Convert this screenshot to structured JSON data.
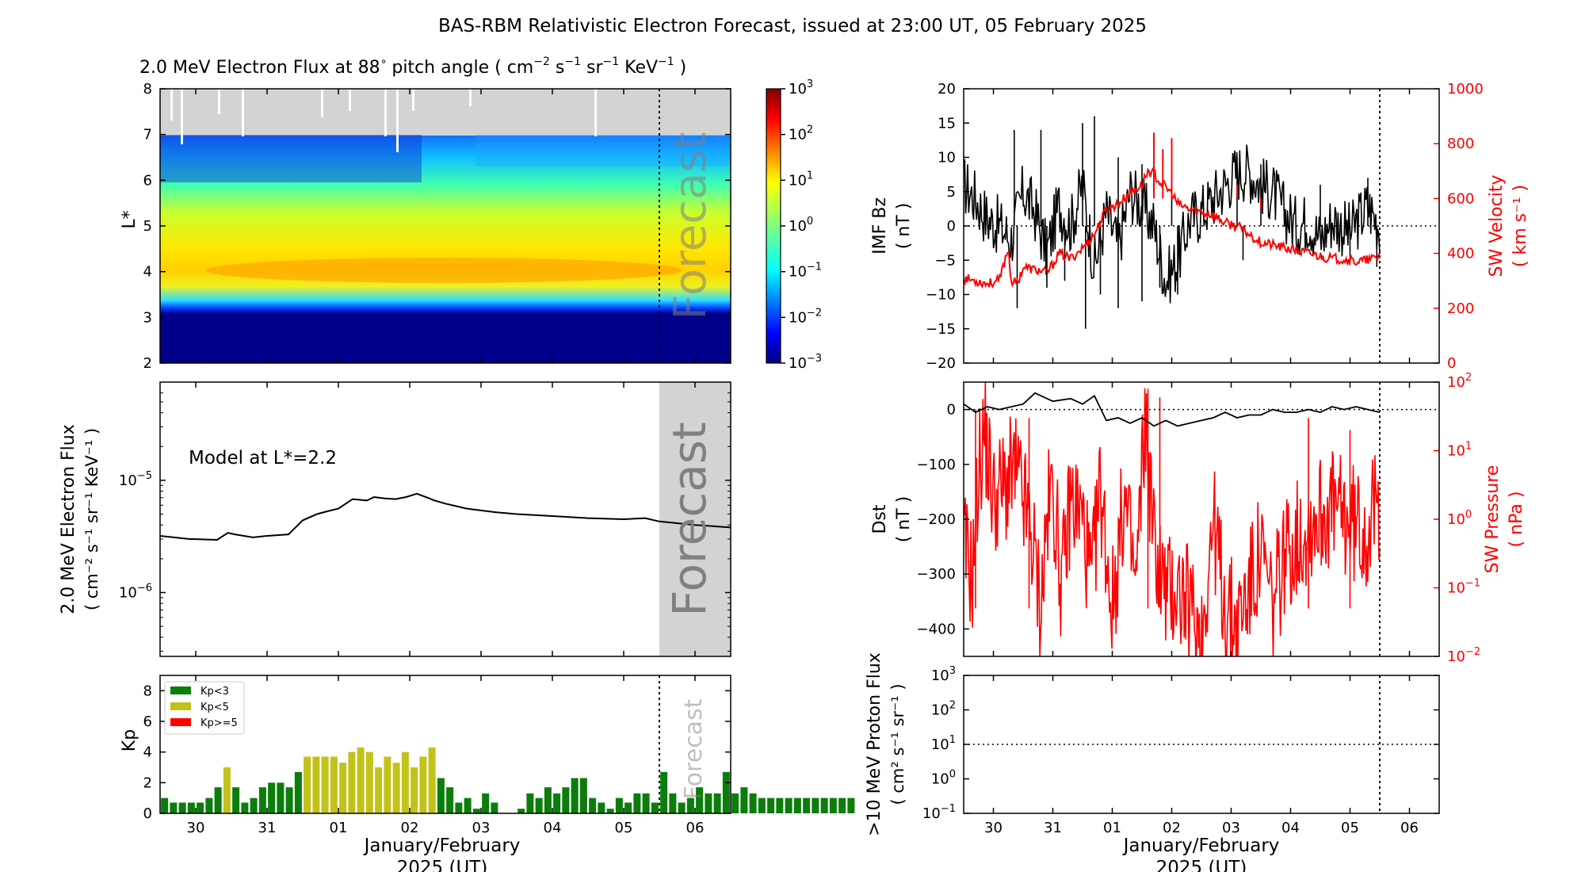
{
  "figure": {
    "title": "BAS-RBM Relativistic Electron Forecast, issued at 23:00 UT, 05 February 2025",
    "time_axis": {
      "range_days": [
        0,
        8.0
      ],
      "range_label": "29 Jan 12:00 UT to 06 Feb 12:00 UT",
      "forecast_start_day": 7.0,
      "tick_days": [
        0.5,
        1.5,
        2.5,
        3.5,
        4.5,
        5.5,
        6.5,
        7.5
      ],
      "tick_labels": [
        "30",
        "31",
        "01",
        "02",
        "03",
        "04",
        "05",
        "06"
      ],
      "xlabel_line1": "January/February",
      "xlabel_line2": "2025 (UT)"
    },
    "forecast_label": "Forecast"
  },
  "chart_data": [
    {
      "id": "flux-heatmap",
      "type": "heatmap",
      "title_prefix": "2.0 MeV Electron Flux at 88",
      "title_degree": "∘",
      "title_units": "pitch angle ( cm",
      "title_units_sup1": "−2",
      "title_units_mid1": " s",
      "title_units_sup2": "−1",
      "title_units_mid2": " sr",
      "title_units_sup3": "−1",
      "title_units_mid3": " KeV",
      "title_units_sup4": "−1",
      "title_units_end": " )",
      "ylabel": "L*",
      "ylim": [
        2,
        8
      ],
      "yticks": [
        2,
        3,
        4,
        5,
        6,
        7,
        8
      ],
      "colorbar": {
        "scale": "log",
        "range": [
          0.001,
          1000
        ],
        "colormap": "jet",
        "ticks": [
          {
            "base": "10",
            "exp": "3"
          },
          {
            "base": "10",
            "exp": "2"
          },
          {
            "base": "10",
            "exp": "1"
          },
          {
            "base": "10",
            "exp": "0"
          },
          {
            "base": "10",
            "exp": "−1"
          },
          {
            "base": "10",
            "exp": "−2"
          },
          {
            "base": "10",
            "exp": "−3"
          }
        ]
      },
      "no_data_above_L": 7.0,
      "bands": [
        {
          "L": [
            2.0,
            3.1
          ],
          "log10_flux": -3.0
        },
        {
          "L": [
            3.1,
            3.35
          ],
          "log10_flux": -1.5
        },
        {
          "L": [
            3.35,
            3.8
          ],
          "log10_flux": 0.6
        },
        {
          "L": [
            3.8,
            4.3
          ],
          "log10_flux": 1.2
        },
        {
          "L": [
            4.3,
            5.2
          ],
          "log10_flux": 0.6
        },
        {
          "L": [
            5.2,
            6.0
          ],
          "log10_flux": -0.3
        },
        {
          "L": [
            6.0,
            7.0
          ],
          "log10_flux": -1.0
        }
      ]
    },
    {
      "id": "model-flux",
      "type": "line",
      "annotation": "Model at L*=2.2",
      "ylabel_line1": "2.0 MeV Electron Flux",
      "ylabel_line2": "( cm⁻² s⁻¹ sr⁻¹ KeV⁻¹ )",
      "yscale": "log",
      "ylim": [
        2.7e-07,
        7.5e-05
      ],
      "yticks": [
        {
          "value": 1e-05,
          "base": "10",
          "exp": "−5"
        },
        {
          "value": 1e-06,
          "base": "10",
          "exp": "−6"
        }
      ],
      "x_days": [
        0,
        0.4,
        0.8,
        0.95,
        1.05,
        1.3,
        1.5,
        1.8,
        2.0,
        2.2,
        2.35,
        2.5,
        2.7,
        2.9,
        3.0,
        3.15,
        3.3,
        3.45,
        3.6,
        3.75,
        3.85,
        4.0,
        4.3,
        4.7,
        5.0,
        5.5,
        6.0,
        6.5,
        6.8,
        7.0,
        7.5,
        8.0
      ],
      "values": [
        3.2e-06,
        3e-06,
        2.95e-06,
        3.4e-06,
        3.3e-06,
        3.1e-06,
        3.2e-06,
        3.3e-06,
        4.4e-06,
        5e-06,
        5.3e-06,
        5.6e-06,
        6.8e-06,
        6.6e-06,
        7.1e-06,
        6.9e-06,
        6.8e-06,
        7.1e-06,
        7.6e-06,
        7e-06,
        6.6e-06,
        6.2e-06,
        5.6e-06,
        5.2e-06,
        5e-06,
        4.8e-06,
        4.6e-06,
        4.5e-06,
        4.6e-06,
        4.3e-06,
        4e-06,
        3.8e-06
      ]
    },
    {
      "id": "kp",
      "type": "bar",
      "ylabel": "Kp",
      "ylim": [
        0,
        9
      ],
      "yticks": [
        0,
        2,
        4,
        6,
        8
      ],
      "legend": [
        {
          "label": "Kp<3",
          "color": "#0b7d0b"
        },
        {
          "label": "Kp<5",
          "color": "#c2c21a"
        },
        {
          "label": "Kp>=5",
          "color": "#ff0000"
        }
      ],
      "bar_width_days": 0.1,
      "start_day": 0.0625,
      "step_days": 0.125,
      "values": [
        1.0,
        0.7,
        0.7,
        0.7,
        0.7,
        1.0,
        1.7,
        3.0,
        1.7,
        0.7,
        1.0,
        1.7,
        2.0,
        2.0,
        1.7,
        2.7,
        3.7,
        3.7,
        3.7,
        3.7,
        3.3,
        4.0,
        4.3,
        4.0,
        3.0,
        3.7,
        3.3,
        4.0,
        3.0,
        3.7,
        4.3,
        2.3,
        1.7,
        0.7,
        1.0,
        0.3,
        1.3,
        0.7,
        0,
        0,
        0.3,
        1.3,
        1.0,
        1.7,
        1.3,
        1.7,
        2.3,
        2.3,
        1.0,
        0.7,
        0.3,
        1.0,
        0.7,
        1.3,
        1.3,
        0.7,
        2.7,
        1.3,
        0.7,
        1.0,
        1.7,
        1.3,
        1.3,
        2.7,
        1.3,
        1.7,
        1.3,
        1.0,
        1.0,
        1.0,
        1.0,
        1.0,
        1.0,
        1.0,
        1.0,
        1.0,
        1.0,
        1.0
      ]
    },
    {
      "id": "imf-bz-sw-velocity",
      "type": "line",
      "left_axis": {
        "label_line1": "IMF Bz",
        "label_line2": "( nT )",
        "ylim": [
          -20,
          20
        ],
        "yticks": [
          -20,
          -15,
          -10,
          -5,
          0,
          5,
          10,
          15,
          20
        ],
        "series_name": "IMF Bz",
        "color": "#000000",
        "x_days": [
          0,
          0.2,
          0.4,
          0.6,
          0.8,
          1.0,
          1.2,
          1.4,
          1.6,
          1.8,
          2.0,
          2.2,
          2.4,
          2.6,
          2.8,
          3.0,
          3.2,
          3.4,
          3.6,
          3.8,
          4.0,
          4.2,
          4.4,
          4.6,
          4.8,
          5.0,
          5.2,
          5.4,
          5.6,
          5.8,
          6.0,
          6.2,
          6.5,
          6.8,
          7.0
        ],
        "values": [
          6,
          4,
          1,
          0,
          -2,
          5,
          2,
          -4,
          3,
          0,
          6,
          -6,
          2,
          -3,
          5,
          3,
          0,
          -8,
          -5,
          1,
          2,
          4,
          6,
          8,
          8,
          6,
          5,
          2,
          0,
          1,
          -2,
          1,
          -1,
          3,
          0
        ],
        "min_spikes": [
          [
            0.9,
            -12
          ],
          [
            1.4,
            -9
          ],
          [
            1.7,
            -8
          ],
          [
            2.05,
            -15
          ],
          [
            2.3,
            -10
          ],
          [
            2.6,
            -12
          ],
          [
            3.0,
            -11
          ],
          [
            3.3,
            -9
          ],
          [
            3.6,
            -10
          ],
          [
            4.7,
            -5
          ],
          [
            6.5,
            -5
          ],
          [
            6.95,
            -6
          ]
        ],
        "max_spikes": [
          [
            0.85,
            14
          ],
          [
            1.3,
            14
          ],
          [
            2.0,
            15
          ],
          [
            2.2,
            16
          ],
          [
            2.6,
            10
          ],
          [
            3.0,
            9
          ],
          [
            3.5,
            8
          ],
          [
            4.6,
            10
          ],
          [
            5.0,
            9
          ],
          [
            6.0,
            6
          ],
          [
            6.8,
            7
          ]
        ],
        "zero_line": true
      },
      "right_axis": {
        "label_line1": "SW Velocity",
        "label_line2": "( km s⁻¹ )",
        "ylim": [
          0,
          1000
        ],
        "yticks": [
          0,
          200,
          400,
          600,
          800,
          1000
        ],
        "series_name": "SW Velocity",
        "color": "#ff0000",
        "x_days": [
          0,
          0.2,
          0.4,
          0.6,
          0.75,
          0.8,
          0.9,
          1.0,
          1.2,
          1.4,
          1.5,
          1.6,
          1.8,
          2.0,
          2.2,
          2.4,
          2.6,
          2.8,
          3.0,
          3.1,
          3.2,
          3.3,
          3.4,
          3.5,
          3.6,
          3.8,
          4.0,
          4.2,
          4.4,
          4.6,
          4.8,
          5.0,
          5.2,
          5.4,
          5.6,
          5.8,
          6.0,
          6.2,
          6.4,
          6.6,
          6.8,
          7.0
        ],
        "values": [
          310,
          300,
          290,
          300,
          420,
          300,
          290,
          350,
          340,
          330,
          360,
          400,
          380,
          420,
          470,
          560,
          580,
          620,
          650,
          700,
          690,
          660,
          640,
          620,
          580,
          560,
          550,
          540,
          510,
          500,
          470,
          440,
          430,
          420,
          410,
          400,
          390,
          380,
          380,
          370,
          375,
          390
        ],
        "max_spikes": [
          [
            3.2,
            840
          ],
          [
            3.35,
            780
          ],
          [
            3.5,
            820
          ],
          [
            4.6,
            650
          ],
          [
            5.0,
            560
          ]
        ]
      }
    },
    {
      "id": "dst-sw-pressure",
      "type": "line",
      "left_axis": {
        "label_line1": "Dst",
        "label_line2": "( nT )",
        "ylim": [
          -450,
          50
        ],
        "yticks": [
          0,
          -100,
          -200,
          -300,
          -400
        ],
        "ytick_labels": [
          "0",
          "−100",
          "−200",
          "−300",
          "−400"
        ],
        "series_name": "Dst",
        "color": "#000000",
        "x_days": [
          0,
          0.2,
          0.4,
          0.6,
          0.8,
          1.0,
          1.2,
          1.5,
          1.8,
          2.0,
          2.2,
          2.4,
          2.6,
          2.8,
          3.0,
          3.2,
          3.4,
          3.6,
          3.8,
          4.0,
          4.2,
          4.4,
          4.6,
          4.8,
          5.0,
          5.2,
          5.4,
          5.6,
          5.8,
          6.0,
          6.2,
          6.4,
          6.6,
          6.8,
          7.0
        ],
        "values": [
          10,
          -5,
          5,
          0,
          5,
          10,
          30,
          15,
          20,
          10,
          25,
          -20,
          -15,
          -25,
          -15,
          -30,
          -20,
          -30,
          -25,
          -20,
          -15,
          -5,
          -15,
          -10,
          -10,
          0,
          -5,
          -5,
          0,
          -5,
          5,
          0,
          5,
          0,
          -5
        ]
      },
      "right_axis": {
        "label_line1": "SW Pressure",
        "label_line2": "( nPa )",
        "yscale": "log",
        "ylim": [
          0.01,
          100
        ],
        "yticks": [
          {
            "value": 100,
            "base": "10",
            "exp": "2"
          },
          {
            "value": 10,
            "base": "10",
            "exp": "1"
          },
          {
            "value": 1,
            "base": "10",
            "exp": "0"
          },
          {
            "value": 0.1,
            "base": "10",
            "exp": "−1"
          },
          {
            "value": 0.01,
            "base": "10",
            "exp": "−2"
          }
        ],
        "series_name": "SW Pressure",
        "color": "#ff0000",
        "x_days": [
          0,
          0.15,
          0.25,
          0.35,
          0.5,
          0.7,
          0.85,
          1.0,
          1.15,
          1.3,
          1.4,
          1.5,
          1.65,
          1.8,
          2.0,
          2.15,
          2.3,
          2.5,
          2.7,
          2.9,
          3.05,
          3.2,
          3.4,
          3.6,
          3.8,
          4.0,
          4.2,
          4.4,
          4.6,
          4.8,
          5.0,
          5.2,
          5.4,
          5.6,
          5.8,
          6.0,
          6.2,
          6.4,
          6.6,
          6.8,
          7.0
        ],
        "values": [
          0.4,
          0.15,
          5,
          20,
          2,
          3,
          5,
          2,
          0.5,
          0.05,
          1,
          3,
          0.1,
          2,
          1,
          0.1,
          3,
          0.05,
          2,
          0.1,
          30,
          0.5,
          0.08,
          0.1,
          0.05,
          0.02,
          1,
          0.05,
          0.03,
          0.1,
          0.3,
          0.05,
          0.3,
          0.5,
          0.8,
          1.2,
          1.5,
          1.0,
          0.8,
          0.7,
          1.8
        ],
        "max_spikes": [
          [
            0.2,
            40
          ],
          [
            1.1,
            30
          ],
          [
            3.1,
            80
          ],
          [
            3.3,
            60
          ],
          [
            5.8,
            30
          ],
          [
            6.5,
            20
          ]
        ]
      }
    },
    {
      "id": "proton-flux",
      "type": "line",
      "ylabel_line1": ">10 MeV Proton Flux",
      "ylabel_line2": "( cm² s⁻¹ sr⁻¹ )",
      "yscale": "log",
      "ylim": [
        0.1,
        1000
      ],
      "yticks": [
        {
          "value": 1000,
          "base": "10",
          "exp": "3"
        },
        {
          "value": 100,
          "base": "10",
          "exp": "2"
        },
        {
          "value": 10,
          "base": "10",
          "exp": "1"
        },
        {
          "value": 1,
          "base": "10",
          "exp": "0"
        },
        {
          "value": 0.1,
          "base": "10",
          "exp": "−1"
        }
      ],
      "threshold": 10,
      "values": []
    }
  ]
}
